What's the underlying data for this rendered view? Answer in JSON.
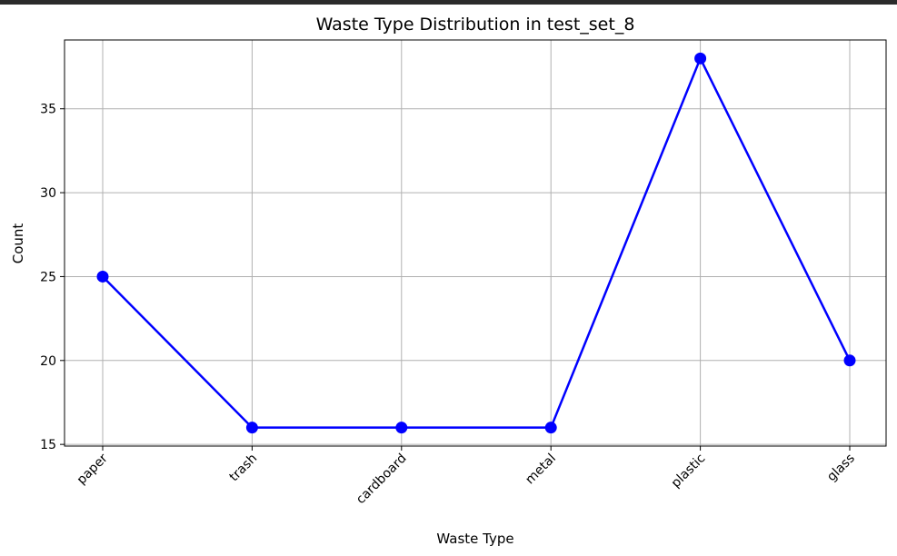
{
  "chart_data": {
    "type": "line",
    "title": "Waste Type Distribution in test_set_8",
    "xlabel": "Waste Type",
    "ylabel": "Count",
    "categories": [
      "paper",
      "trash",
      "cardboard",
      "metal",
      "plastic",
      "glass"
    ],
    "series": [
      {
        "values": [
          25,
          16,
          16,
          16,
          38,
          20
        ]
      }
    ],
    "ylim": [
      14.9,
      39.1
    ],
    "yticks": [
      15,
      20,
      25,
      30,
      35
    ],
    "grid": true,
    "line_color": "#0000ff",
    "marker": "circle",
    "xtick_rotation": 45
  }
}
